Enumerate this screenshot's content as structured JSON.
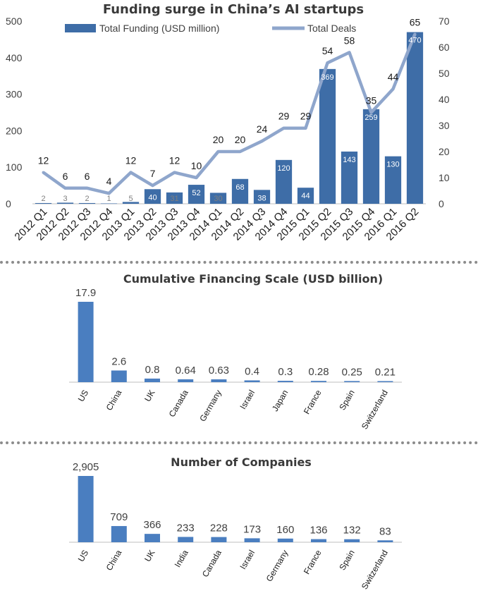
{
  "chart_data": [
    {
      "type": "bar+line",
      "title": "Funding surge in China’s AI startups",
      "categories": [
        "2012 Q1",
        "2012 Q2",
        "2012 Q3",
        "2012 Q4",
        "2013 Q1",
        "2013 Q2",
        "2013 Q3",
        "2013 Q4",
        "2014 Q1",
        "2014 Q2",
        "2014 Q3",
        "2014 Q4",
        "2015 Q1",
        "2015 Q2",
        "2015 Q3",
        "2015 Q4",
        "2016 Q1",
        "2016 Q2"
      ],
      "series": [
        {
          "name": "Total Funding (USD million)",
          "type": "bar",
          "axis": "left",
          "values": [
            2,
            3,
            2,
            1,
            5,
            40,
            31,
            52,
            30,
            68,
            38,
            120,
            44,
            369,
            143,
            259,
            130,
            470
          ]
        },
        {
          "name": "Total Deals",
          "type": "line",
          "axis": "right",
          "values": [
            12,
            6,
            6,
            4,
            12,
            7,
            12,
            10,
            20,
            20,
            24,
            29,
            29,
            54,
            58,
            35,
            44,
            65
          ]
        }
      ],
      "y_left": {
        "range": [
          0,
          500
        ],
        "ticks": [
          0,
          100,
          200,
          300,
          400,
          500
        ]
      },
      "y_right": {
        "range": [
          0,
          70
        ],
        "ticks": [
          0,
          10,
          20,
          30,
          40,
          50,
          60,
          70
        ]
      },
      "colors": {
        "bar": "#3e6da7",
        "line": "#8fa6cc"
      },
      "legend_position": "top"
    },
    {
      "type": "bar",
      "title": "Cumulative Financing Scale (USD billion)",
      "categories": [
        "US",
        "China",
        "UK",
        "Canada",
        "Germany",
        "Israel",
        "Japan",
        "France",
        "Spain",
        "Switzerland"
      ],
      "values": [
        17.9,
        2.6,
        0.8,
        0.64,
        0.63,
        0.4,
        0.3,
        0.28,
        0.25,
        0.21
      ],
      "labels": [
        "17.9",
        "2.6",
        "0.8",
        "0.64",
        "0.63",
        "0.4",
        "0.3",
        "0.28",
        "0.25",
        "0.21"
      ],
      "colors": {
        "bar": "#4a7ec0"
      }
    },
    {
      "type": "bar",
      "title": "Number of Companies",
      "categories": [
        "US",
        "China",
        "UK",
        "India",
        "Canada",
        "Israel",
        "Germany",
        "France",
        "Spain",
        "Switzerland"
      ],
      "values": [
        2905,
        709,
        366,
        233,
        228,
        173,
        160,
        136,
        132,
        83
      ],
      "labels": [
        "2,905",
        "709",
        "366",
        "233",
        "228",
        "173",
        "160",
        "136",
        "132",
        "83"
      ],
      "colors": {
        "bar": "#4a7ec0"
      }
    }
  ]
}
